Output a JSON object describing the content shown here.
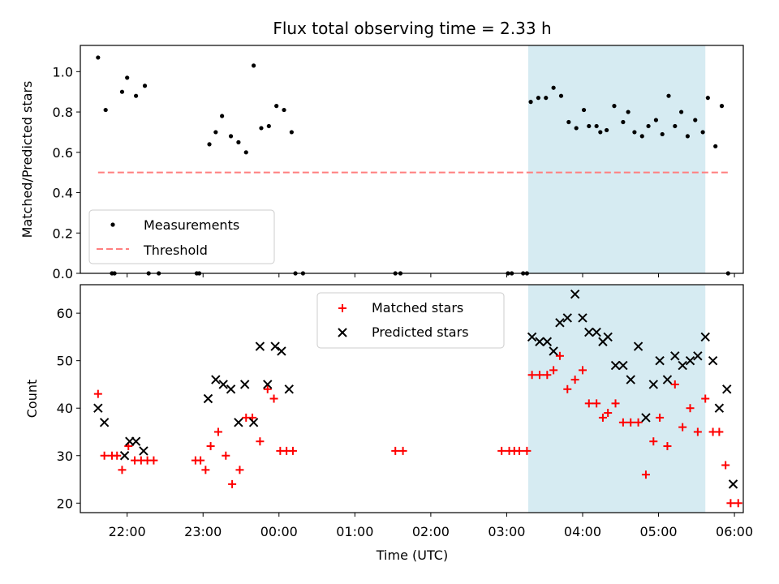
{
  "chart_data": {
    "title": "Flux total observing time = 2.33 h",
    "xlabel": "Time (UTC)",
    "x_ticks": [
      "22:00",
      "23:00",
      "00:00",
      "01:00",
      "02:00",
      "03:00",
      "04:00",
      "05:00",
      "06:00"
    ],
    "x_range": [
      "21:23",
      "06:07"
    ],
    "highlight_span": [
      "03:17",
      "05:37"
    ],
    "panels": [
      {
        "type": "scatter",
        "ylabel": "Matched/Predicted stars",
        "ylim": [
          0,
          1.13
        ],
        "y_ticks": [
          "0.0",
          "0.2",
          "0.4",
          "0.6",
          "0.8",
          "1.0"
        ],
        "legend_position": "lower-left",
        "series": [
          {
            "name": "Measurements",
            "color": "#000000",
            "marker": "dot",
            "points": [
              [
                "21:37",
                1.07
              ],
              [
                "21:43",
                0.81
              ],
              [
                "21:48",
                0.0
              ],
              [
                "21:50",
                0.0
              ],
              [
                "21:56",
                0.9
              ],
              [
                "22:00",
                0.97
              ],
              [
                "22:07",
                0.88
              ],
              [
                "22:14",
                0.93
              ],
              [
                "22:17",
                0.0
              ],
              [
                "22:25",
                0.0
              ],
              [
                "22:55",
                0.0
              ],
              [
                "22:57",
                0.0
              ],
              [
                "23:05",
                0.64
              ],
              [
                "23:10",
                0.7
              ],
              [
                "23:15",
                0.78
              ],
              [
                "23:22",
                0.68
              ],
              [
                "23:28",
                0.65
              ],
              [
                "23:34",
                0.6
              ],
              [
                "23:40",
                1.03
              ],
              [
                "23:46",
                0.72
              ],
              [
                "23:52",
                0.73
              ],
              [
                "23:58",
                0.83
              ],
              [
                "00:04",
                0.81
              ],
              [
                "00:10",
                0.7
              ],
              [
                "00:13",
                0.0
              ],
              [
                "00:19",
                0.0
              ],
              [
                "01:32",
                0.0
              ],
              [
                "01:36",
                0.0
              ],
              [
                "03:01",
                0.0
              ],
              [
                "03:04",
                0.0
              ],
              [
                "03:13",
                0.0
              ],
              [
                "03:16",
                0.0
              ],
              [
                "03:19",
                0.85
              ],
              [
                "03:25",
                0.87
              ],
              [
                "03:31",
                0.87
              ],
              [
                "03:37",
                0.92
              ],
              [
                "03:43",
                0.88
              ],
              [
                "03:49",
                0.75
              ],
              [
                "03:55",
                0.72
              ],
              [
                "04:01",
                0.81
              ],
              [
                "04:05",
                0.73
              ],
              [
                "04:11",
                0.73
              ],
              [
                "04:14",
                0.7
              ],
              [
                "04:19",
                0.71
              ],
              [
                "04:25",
                0.83
              ],
              [
                "04:32",
                0.75
              ],
              [
                "04:36",
                0.8
              ],
              [
                "04:41",
                0.7
              ],
              [
                "04:47",
                0.68
              ],
              [
                "04:52",
                0.73
              ],
              [
                "04:58",
                0.76
              ],
              [
                "05:03",
                0.69
              ],
              [
                "05:08",
                0.88
              ],
              [
                "05:13",
                0.73
              ],
              [
                "05:18",
                0.8
              ],
              [
                "05:23",
                0.68
              ],
              [
                "05:29",
                0.76
              ],
              [
                "05:35",
                0.7
              ],
              [
                "05:39",
                0.87
              ],
              [
                "05:45",
                0.63
              ],
              [
                "05:50",
                0.83
              ],
              [
                "05:55",
                0.0
              ]
            ]
          },
          {
            "name": "Threshold",
            "color": "#ff7f7f",
            "marker": "dashed-line",
            "points": [
              [
                "21:37",
                0.5
              ],
              [
                "05:55",
                0.5
              ]
            ]
          }
        ]
      },
      {
        "type": "scatter",
        "ylabel": "Count",
        "ylim": [
          18,
          66
        ],
        "y_ticks": [
          "20",
          "30",
          "40",
          "50",
          "60"
        ],
        "legend_position": "upper-center",
        "series": [
          {
            "name": "Matched stars",
            "color": "#ff0000",
            "marker": "plus",
            "points": [
              [
                "21:37",
                43
              ],
              [
                "21:42",
                30
              ],
              [
                "21:48",
                30
              ],
              [
                "21:52",
                30
              ],
              [
                "21:56",
                27
              ],
              [
                "22:01",
                32
              ],
              [
                "22:06",
                29
              ],
              [
                "22:11",
                29
              ],
              [
                "22:16",
                29
              ],
              [
                "22:21",
                29
              ],
              [
                "22:54",
                29
              ],
              [
                "22:58",
                29
              ],
              [
                "23:02",
                27
              ],
              [
                "23:06",
                32
              ],
              [
                "23:12",
                35
              ],
              [
                "23:18",
                30
              ],
              [
                "23:23",
                24
              ],
              [
                "23:29",
                27
              ],
              [
                "23:34",
                38
              ],
              [
                "23:39",
                38
              ],
              [
                "23:45",
                33
              ],
              [
                "23:51",
                44
              ],
              [
                "23:56",
                42
              ],
              [
                "24:01",
                31
              ],
              [
                "24:06",
                31
              ],
              [
                "24:11",
                31
              ],
              [
                "25:32",
                31
              ],
              [
                "25:38",
                31
              ],
              [
                "26:56",
                31
              ],
              [
                "27:02",
                31
              ],
              [
                "27:06",
                31
              ],
              [
                "27:10",
                31
              ],
              [
                "27:16",
                31
              ],
              [
                "27:20",
                47
              ],
              [
                "27:26",
                47
              ],
              [
                "27:32",
                47
              ],
              [
                "27:37",
                48
              ],
              [
                "27:42",
                51
              ],
              [
                "27:48",
                44
              ],
              [
                "27:54",
                46
              ],
              [
                "28:00",
                48
              ],
              [
                "28:05",
                41
              ],
              [
                "28:11",
                41
              ],
              [
                "28:16",
                38
              ],
              [
                "28:20",
                39
              ],
              [
                "28:26",
                41
              ],
              [
                "28:32",
                37
              ],
              [
                "28:38",
                37
              ],
              [
                "28:44",
                37
              ],
              [
                "28:50",
                26
              ],
              [
                "28:56",
                33
              ],
              [
                "29:01",
                38
              ],
              [
                "29:07",
                32
              ],
              [
                "29:13",
                45
              ],
              [
                "29:19",
                36
              ],
              [
                "29:25",
                40
              ],
              [
                "29:31",
                35
              ],
              [
                "29:37",
                42
              ],
              [
                "29:43",
                35
              ],
              [
                "29:48",
                35
              ],
              [
                "29:53",
                28
              ],
              [
                "29:57",
                20
              ],
              [
                "30:03",
                20
              ]
            ]
          },
          {
            "name": "Predicted stars",
            "color": "#000000",
            "marker": "x",
            "points": [
              [
                "21:37",
                40
              ],
              [
                "21:42",
                37
              ],
              [
                "21:58",
                30
              ],
              [
                "22:02",
                33
              ],
              [
                "22:07",
                33
              ],
              [
                "22:13",
                31
              ],
              [
                "23:04",
                42
              ],
              [
                "23:10",
                46
              ],
              [
                "23:16",
                45
              ],
              [
                "23:22",
                44
              ],
              [
                "23:28",
                37
              ],
              [
                "23:33",
                45
              ],
              [
                "23:40",
                37
              ],
              [
                "23:45",
                53
              ],
              [
                "23:51",
                45
              ],
              [
                "23:57",
                53
              ],
              [
                "24:02",
                52
              ],
              [
                "24:08",
                44
              ],
              [
                "27:20",
                55
              ],
              [
                "27:26",
                54
              ],
              [
                "27:32",
                54
              ],
              [
                "27:37",
                52
              ],
              [
                "27:42",
                58
              ],
              [
                "27:48",
                59
              ],
              [
                "27:54",
                64
              ],
              [
                "28:00",
                59
              ],
              [
                "28:05",
                56
              ],
              [
                "28:11",
                56
              ],
              [
                "28:16",
                54
              ],
              [
                "28:20",
                55
              ],
              [
                "28:26",
                49
              ],
              [
                "28:32",
                49
              ],
              [
                "28:38",
                46
              ],
              [
                "28:44",
                53
              ],
              [
                "28:50",
                38
              ],
              [
                "28:56",
                45
              ],
              [
                "29:01",
                50
              ],
              [
                "29:07",
                46
              ],
              [
                "29:13",
                51
              ],
              [
                "29:19",
                49
              ],
              [
                "29:25",
                50
              ],
              [
                "29:31",
                51
              ],
              [
                "29:37",
                55
              ],
              [
                "29:43",
                50
              ],
              [
                "29:48",
                40
              ],
              [
                "29:54",
                44
              ],
              [
                "29:59",
                24
              ]
            ]
          }
        ]
      }
    ]
  }
}
